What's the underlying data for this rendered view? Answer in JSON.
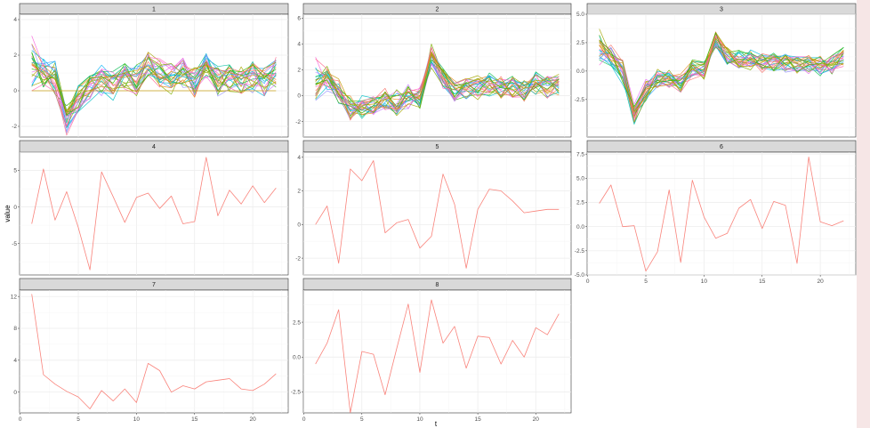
{
  "figure": {
    "y_axis_title": "value",
    "x_axis_title": "t",
    "background_color": "#ffffff",
    "strip_color": "#d9d9d9",
    "single_series_color": "#f8766d",
    "right_strip_color": "#f6e6e6"
  },
  "chart_data": [
    {
      "panel": "1",
      "type": "line",
      "title": "1",
      "x": [
        1,
        2,
        3,
        4,
        5,
        6,
        7,
        8,
        9,
        10,
        11,
        12,
        13,
        14,
        15,
        16,
        17,
        18,
        19,
        20,
        21,
        22
      ],
      "ylim": [
        -2.6,
        4.3
      ],
      "yticks": [
        -2,
        0,
        2,
        4
      ],
      "xticks": [],
      "grid": true,
      "series_count": 25,
      "series": [
        {
          "values": [
            1.2,
            0.8,
            0.9,
            -1.8,
            -0.4,
            0.2,
            0.5,
            0.3,
            0.8,
            0.5,
            1.6,
            1.0,
            0.6,
            1.1,
            0.4,
            1.3,
            0.7,
            0.8,
            0.3,
            0.9,
            0.5,
            1.1
          ]
        },
        {
          "values": [
            0.9,
            1.4,
            0.3,
            -1.2,
            -0.6,
            -0.1,
            0.9,
            0.2,
            0.6,
            0.9,
            1.8,
            1.1,
            1.2,
            0.5,
            0.7,
            1.4,
            0.3,
            0.6,
            0.8,
            0.4,
            0.9,
            0.8
          ]
        }
      ]
    },
    {
      "panel": "2",
      "type": "line",
      "title": "2",
      "x": [
        1,
        2,
        3,
        4,
        5,
        6,
        7,
        8,
        9,
        10,
        11,
        12,
        13,
        14,
        15,
        16,
        17,
        18,
        19,
        20,
        21,
        22
      ],
      "ylim": [
        -3.2,
        6.3
      ],
      "yticks": [
        -2,
        0,
        2,
        4,
        6
      ],
      "xticks": [],
      "grid": true,
      "series_count": 25,
      "series": [
        {
          "values": [
            0.8,
            1.5,
            0.2,
            -0.8,
            -1.1,
            -0.6,
            -0.2,
            -0.9,
            0.1,
            -0.4,
            3.2,
            1.5,
            0.3,
            0.9,
            0.4,
            1.0,
            0.6,
            0.8,
            0.3,
            1.1,
            0.5,
            0.9
          ]
        },
        {
          "values": [
            0.2,
            0.6,
            1.1,
            -1.4,
            -0.4,
            -1.0,
            -0.5,
            0.3,
            -0.6,
            0.4,
            2.6,
            0.9,
            0.6,
            0.2,
            1.1,
            0.5,
            0.9,
            0.3,
            0.8,
            0.6,
            1.0,
            0.7
          ]
        }
      ]
    },
    {
      "panel": "3",
      "type": "line",
      "title": "3",
      "x": [
        1,
        2,
        3,
        4,
        5,
        6,
        7,
        8,
        9,
        10,
        11,
        12,
        13,
        14,
        15,
        16,
        17,
        18,
        19,
        20,
        21,
        22
      ],
      "ylim": [
        -5.8,
        5.0
      ],
      "yticks": [
        -2.5,
        0.0,
        2.5,
        5.0
      ],
      "xticks": [],
      "grid": true,
      "series_count": 25,
      "series": [
        {
          "values": [
            1.6,
            1.2,
            -0.4,
            -3.9,
            -1.8,
            -0.6,
            -0.9,
            -1.2,
            0.1,
            -0.2,
            2.8,
            1.4,
            0.9,
            1.1,
            0.6,
            0.9,
            0.8,
            0.5,
            0.7,
            0.3,
            0.6,
            1.3
          ]
        },
        {
          "values": [
            1.0,
            1.9,
            0.8,
            -3.2,
            -1.2,
            -1.5,
            -0.4,
            -0.7,
            0.6,
            0.3,
            2.6,
            0.8,
            1.3,
            0.6,
            1.1,
            0.7,
            0.5,
            0.9,
            0.4,
            0.8,
            0.4,
            1.0
          ]
        }
      ]
    },
    {
      "panel": "4",
      "type": "line",
      "title": "4",
      "x": [
        1,
        2,
        3,
        4,
        5,
        6,
        7,
        8,
        9,
        10,
        11,
        12,
        13,
        14,
        15,
        16,
        17,
        18,
        19,
        20,
        21,
        22
      ],
      "ylim": [
        -9.3,
        7.5
      ],
      "yticks": [
        -5,
        0,
        5
      ],
      "xticks": [],
      "grid": true,
      "series": [
        {
          "values": [
            -2.3,
            5.2,
            -1.8,
            2.1,
            -2.8,
            -8.6,
            4.8,
            1.4,
            -2.1,
            1.3,
            1.9,
            -0.2,
            1.5,
            -2.3,
            -2.0,
            6.8,
            -1.2,
            2.3,
            0.4,
            2.9,
            0.6,
            2.6
          ]
        }
      ]
    },
    {
      "panel": "5",
      "type": "line",
      "title": "5",
      "x": [
        1,
        2,
        3,
        4,
        5,
        6,
        7,
        8,
        9,
        10,
        11,
        12,
        13,
        14,
        15,
        16,
        17,
        18,
        19,
        20,
        21,
        22
      ],
      "ylim": [
        -3.0,
        4.3
      ],
      "yticks": [
        -2,
        0,
        2,
        4
      ],
      "xticks": [],
      "grid": true,
      "series": [
        {
          "values": [
            0.0,
            1.1,
            -2.3,
            3.3,
            2.6,
            3.8,
            -0.5,
            0.1,
            0.3,
            -1.4,
            -0.7,
            3.0,
            1.2,
            -2.6,
            0.9,
            2.1,
            2.0,
            1.4,
            0.7,
            0.8,
            0.9,
            0.9
          ]
        }
      ]
    },
    {
      "panel": "6",
      "type": "line",
      "title": "6",
      "x": [
        1,
        2,
        3,
        4,
        5,
        6,
        7,
        8,
        9,
        10,
        11,
        12,
        13,
        14,
        15,
        16,
        17,
        18,
        19,
        20,
        21,
        22
      ],
      "ylim": [
        -5.0,
        7.7
      ],
      "yticks": [
        -5.0,
        -2.5,
        0.0,
        2.5,
        5.0,
        7.5
      ],
      "xticks": [
        0,
        5,
        10,
        15,
        20
      ],
      "grid": true,
      "series": [
        {
          "values": [
            2.4,
            4.3,
            0.0,
            0.1,
            -4.6,
            -2.6,
            3.8,
            -3.7,
            4.8,
            1.0,
            -1.2,
            -0.7,
            1.9,
            2.8,
            -0.2,
            2.6,
            2.2,
            -3.8,
            7.2,
            0.5,
            0.1,
            0.6
          ]
        }
      ]
    },
    {
      "panel": "7",
      "type": "line",
      "title": "7",
      "x": [
        1,
        2,
        3,
        4,
        5,
        6,
        7,
        8,
        9,
        10,
        11,
        12,
        13,
        14,
        15,
        16,
        17,
        18,
        19,
        20,
        21,
        22
      ],
      "ylim": [
        -2.6,
        12.8
      ],
      "yticks": [
        0,
        4,
        8,
        12
      ],
      "xticks": [
        0,
        5,
        10,
        15,
        20
      ],
      "grid": true,
      "series": [
        {
          "values": [
            12.3,
            2.2,
            1.0,
            0.1,
            -0.6,
            -2.1,
            0.2,
            -1.1,
            0.4,
            -1.3,
            3.6,
            2.7,
            0.0,
            0.8,
            0.4,
            1.3,
            1.5,
            1.7,
            0.4,
            0.2,
            1.0,
            2.3
          ]
        }
      ]
    },
    {
      "panel": "8",
      "type": "line",
      "title": "8",
      "x": [
        1,
        2,
        3,
        4,
        5,
        6,
        7,
        8,
        9,
        10,
        11,
        12,
        13,
        14,
        15,
        16,
        17,
        18,
        19,
        20,
        21,
        22
      ],
      "ylim": [
        -4.0,
        4.8
      ],
      "yticks": [
        -2.5,
        0.0,
        2.5
      ],
      "xticks": [
        0,
        5,
        10,
        15,
        20
      ],
      "grid": true,
      "series": [
        {
          "values": [
            -0.5,
            1.0,
            3.4,
            -4.0,
            0.4,
            0.2,
            -2.7,
            0.6,
            3.8,
            -1.1,
            4.1,
            1.0,
            2.2,
            -0.8,
            1.5,
            1.4,
            -0.5,
            1.2,
            0.0,
            2.1,
            1.6,
            3.1
          ]
        }
      ]
    }
  ]
}
